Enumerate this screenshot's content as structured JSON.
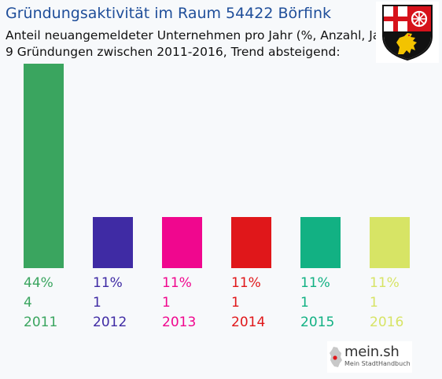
{
  "header": {
    "title": "Gründungsaktivität im Raum 54422 Börfink",
    "subtitle_line1": "Anteil neuangemeldeter Unternehmen pro Jahr (%, Anzahl, Jahr)",
    "subtitle_line2": "9 Gründungen zwischen 2011-2016, Trend absteigend:"
  },
  "coat_of_arms": {
    "icon": "rhineland-palatinate-coat-of-arms-icon"
  },
  "brand": {
    "name": "mein.sh",
    "tagline": "Mein StadtHandbuch",
    "icon": "germany-map-icon"
  },
  "chart_data": {
    "type": "bar",
    "categories": [
      "2011",
      "2012",
      "2013",
      "2014",
      "2015",
      "2016"
    ],
    "values": [
      4,
      1,
      1,
      1,
      1,
      1
    ],
    "percent_labels": [
      "44%",
      "11%",
      "11%",
      "11%",
      "11%",
      "11%"
    ],
    "count_labels": [
      "4",
      "1",
      "1",
      "1",
      "1",
      "1"
    ],
    "colors": [
      "#3aa55f",
      "#3f2ba4",
      "#f0078e",
      "#e0171a",
      "#12b183",
      "#d7e465"
    ],
    "ylim": [
      0,
      4
    ],
    "grid": false,
    "legend": "none"
  }
}
